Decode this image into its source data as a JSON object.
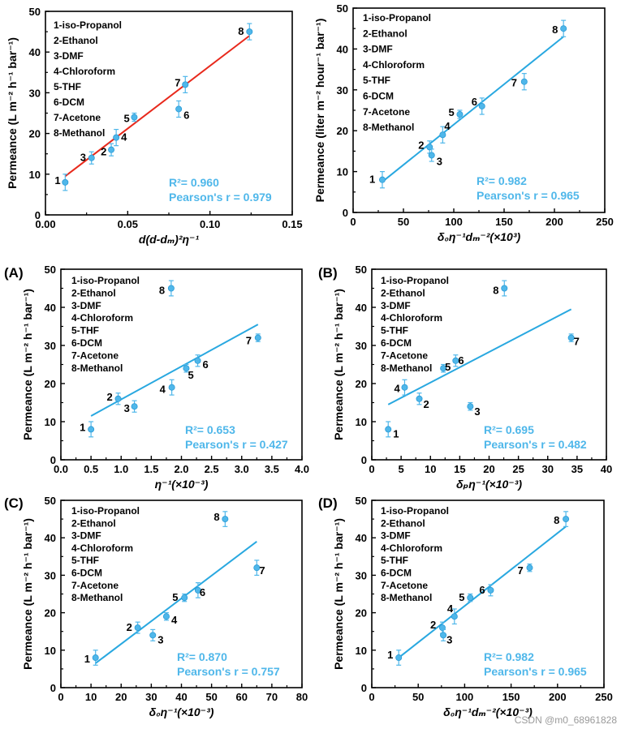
{
  "colors": {
    "fit_red": "#e8291c",
    "fit_blue": "#29a8e0",
    "point": "#4fb7ea",
    "stat_text": "#4fb7ea",
    "axis": "#000000"
  },
  "watermark": "CSDN @m0_68961828",
  "chart_data": [
    {
      "id": "top-left",
      "type": "scatter",
      "panel_label": "",
      "ylabel": "Permeance (L m⁻² h⁻¹ bar⁻¹)",
      "xlabel": "d(d-dₘ)²η⁻¹",
      "xlim": [
        0.0,
        0.15
      ],
      "ylim": [
        0,
        50
      ],
      "xticks": [
        "0.00",
        "0.05",
        "0.10",
        "0.15"
      ],
      "xtick_values": [
        0,
        0.05,
        0.1,
        0.15
      ],
      "yticks": [
        "0",
        "10",
        "20",
        "30",
        "40",
        "50"
      ],
      "ytick_values": [
        0,
        10,
        20,
        30,
        40,
        50
      ],
      "legend": [
        "1-iso-Propanol",
        "2-Ethanol",
        "3-DMF",
        "4-Chloroform",
        "5-THF",
        "6-DCM",
        "7-Acetone",
        "8-Methanol"
      ],
      "points": [
        {
          "label": "1",
          "x": 0.012,
          "y": 8,
          "err": 2
        },
        {
          "label": "2",
          "x": 0.04,
          "y": 16,
          "err": 1.5
        },
        {
          "label": "3",
          "x": 0.028,
          "y": 14,
          "err": 1.5
        },
        {
          "label": "4",
          "x": 0.043,
          "y": 19,
          "err": 2
        },
        {
          "label": "5",
          "x": 0.054,
          "y": 24,
          "err": 1
        },
        {
          "label": "6",
          "x": 0.081,
          "y": 26,
          "err": 2
        },
        {
          "label": "7",
          "x": 0.085,
          "y": 32,
          "err": 2
        },
        {
          "label": "8",
          "x": 0.124,
          "y": 45,
          "err": 2
        }
      ],
      "fit": {
        "x": [
          0.012,
          0.124
        ],
        "y": [
          9.5,
          44
        ]
      },
      "fit_color": "#e8291c",
      "r2": "R²= 0.960",
      "pearson": "Pearson's r = 0.979"
    },
    {
      "id": "top-right",
      "type": "scatter",
      "panel_label": "",
      "ylabel": "Permeance (liter m⁻² hour⁻¹ bar⁻¹)",
      "xlabel": "δ₀η⁻¹dₘ⁻²(×10³)",
      "xlim": [
        0,
        250
      ],
      "ylim": [
        0,
        50
      ],
      "xticks": [
        "0",
        "50",
        "100",
        "150",
        "200",
        "250"
      ],
      "xtick_values": [
        0,
        50,
        100,
        150,
        200,
        250
      ],
      "yticks": [
        "0",
        "10",
        "20",
        "30",
        "40",
        "50"
      ],
      "ytick_values": [
        0,
        10,
        20,
        30,
        40,
        50
      ],
      "legend": [
        "1-iso-Propanol",
        "2-Ethanol",
        "3-DMF",
        "4-Chloroform",
        "5-THF",
        "6-DCM",
        "7-Acetone",
        "8-Methanol"
      ],
      "points": [
        {
          "label": "1",
          "x": 29,
          "y": 8,
          "err": 2
        },
        {
          "label": "2",
          "x": 76,
          "y": 16,
          "err": 1.5
        },
        {
          "label": "3",
          "x": 78,
          "y": 14,
          "err": 1.5
        },
        {
          "label": "4",
          "x": 89,
          "y": 19,
          "err": 2
        },
        {
          "label": "5",
          "x": 106,
          "y": 24,
          "err": 1
        },
        {
          "label": "6",
          "x": 128,
          "y": 26,
          "err": 2
        },
        {
          "label": "7",
          "x": 170,
          "y": 32,
          "err": 2
        },
        {
          "label": "8",
          "x": 209,
          "y": 45,
          "err": 2
        }
      ],
      "fit": {
        "x": [
          29,
          209
        ],
        "y": [
          7.5,
          43
        ]
      },
      "fit_color": "#29a8e0",
      "r2": "R²= 0.982",
      "pearson": "Pearson's r = 0.965"
    },
    {
      "id": "panel-A",
      "type": "scatter",
      "panel_label": "(A)",
      "ylabel": "Permeance (L m⁻² h⁻¹ bar⁻¹)",
      "xlabel": "η⁻¹(×10⁻³)",
      "xlim": [
        0.0,
        4.0
      ],
      "ylim": [
        0,
        50
      ],
      "xticks": [
        "0.0",
        "0.5",
        "1.0",
        "1.5",
        "2.0",
        "2.5",
        "3.0",
        "3.5",
        "4.0"
      ],
      "xtick_values": [
        0,
        0.5,
        1,
        1.5,
        2,
        2.5,
        3,
        3.5,
        4
      ],
      "yticks": [
        "0",
        "10",
        "20",
        "30",
        "40",
        "50"
      ],
      "ytick_values": [
        0,
        10,
        20,
        30,
        40,
        50
      ],
      "legend": [
        "1-iso-Propanol",
        "2-Ethanol",
        "3-DMF",
        "4-Chloroform",
        "5-THF",
        "6-DCM",
        "7-Acetone",
        "8-Methanol"
      ],
      "points": [
        {
          "label": "1",
          "x": 0.5,
          "y": 8,
          "err": 2
        },
        {
          "label": "2",
          "x": 0.95,
          "y": 16,
          "err": 1.5
        },
        {
          "label": "3",
          "x": 1.22,
          "y": 14,
          "err": 1.5
        },
        {
          "label": "4",
          "x": 1.84,
          "y": 19,
          "err": 2
        },
        {
          "label": "5",
          "x": 2.08,
          "y": 24,
          "err": 1
        },
        {
          "label": "6",
          "x": 2.27,
          "y": 26,
          "err": 1.5
        },
        {
          "label": "7",
          "x": 3.27,
          "y": 32,
          "err": 1
        },
        {
          "label": "8",
          "x": 1.83,
          "y": 45,
          "err": 2
        }
      ],
      "fit": {
        "x": [
          0.5,
          3.27
        ],
        "y": [
          11.5,
          35.5
        ]
      },
      "fit_color": "#29a8e0",
      "r2": "R²= 0.653",
      "pearson": "Pearson's r = 0.427"
    },
    {
      "id": "panel-B",
      "type": "scatter",
      "panel_label": "(B)",
      "ylabel": "Permeance (L m⁻² h⁻¹ bar⁻¹)",
      "xlabel": "δₚη⁻¹(×10⁻³)",
      "xlim": [
        0,
        40
      ],
      "ylim": [
        0,
        50
      ],
      "xticks": [
        "0",
        "5",
        "10",
        "15",
        "20",
        "25",
        "30",
        "35",
        "40"
      ],
      "xtick_values": [
        0,
        5,
        10,
        15,
        20,
        25,
        30,
        35,
        40
      ],
      "yticks": [
        "0",
        "10",
        "20",
        "30",
        "40",
        "50"
      ],
      "ytick_values": [
        0,
        10,
        20,
        30,
        40,
        50
      ],
      "legend": [
        "1-iso-Propanol",
        "2-Ethanol",
        "3-DMF",
        "4-Chloroform",
        "5-THF",
        "6-DCM",
        "7-Acetone",
        "8-Methanol"
      ],
      "points": [
        {
          "label": "1",
          "x": 2.8,
          "y": 8,
          "err": 2
        },
        {
          "label": "2",
          "x": 8.1,
          "y": 16,
          "err": 1.5
        },
        {
          "label": "3",
          "x": 16.8,
          "y": 14,
          "err": 1
        },
        {
          "label": "4",
          "x": 5.6,
          "y": 19,
          "err": 2
        },
        {
          "label": "5",
          "x": 12.2,
          "y": 24,
          "err": 1
        },
        {
          "label": "6",
          "x": 14.3,
          "y": 26,
          "err": 1.5
        },
        {
          "label": "7",
          "x": 34.0,
          "y": 32,
          "err": 1
        },
        {
          "label": "8",
          "x": 22.6,
          "y": 45,
          "err": 2
        }
      ],
      "fit": {
        "x": [
          2.8,
          34.0
        ],
        "y": [
          14.5,
          39.5
        ]
      },
      "fit_color": "#29a8e0",
      "r2": "R²= 0.695",
      "pearson": "Pearson's r = 0.482"
    },
    {
      "id": "panel-C",
      "type": "scatter",
      "panel_label": "(C)",
      "ylabel": "Permeance (L m⁻² h⁻¹ bar⁻¹)",
      "xlabel": "δ₀η⁻¹(×10⁻³)",
      "xlim": [
        0,
        80
      ],
      "ylim": [
        0,
        50
      ],
      "xticks": [
        "0",
        "10",
        "20",
        "30",
        "40",
        "50",
        "60",
        "70",
        "80"
      ],
      "xtick_values": [
        0,
        10,
        20,
        30,
        40,
        50,
        60,
        70,
        80
      ],
      "yticks": [
        "0",
        "10",
        "20",
        "30",
        "40",
        "50"
      ],
      "ytick_values": [
        0,
        10,
        20,
        30,
        40,
        50
      ],
      "legend": [
        "1-iso-Propanol",
        "2-Ethanol",
        "3-DMF",
        "4-Chloroform",
        "5-THF",
        "6-DCM",
        "7-Acetone",
        "8-Methanol"
      ],
      "points": [
        {
          "label": "1",
          "x": 11.5,
          "y": 8,
          "err": 2
        },
        {
          "label": "2",
          "x": 25.5,
          "y": 16,
          "err": 1.5
        },
        {
          "label": "3",
          "x": 30.5,
          "y": 14,
          "err": 1.5
        },
        {
          "label": "4",
          "x": 35.0,
          "y": 19,
          "err": 1
        },
        {
          "label": "5",
          "x": 41.0,
          "y": 24,
          "err": 1
        },
        {
          "label": "6",
          "x": 45.5,
          "y": 26,
          "err": 2
        },
        {
          "label": "7",
          "x": 65.0,
          "y": 32,
          "err": 2
        },
        {
          "label": "8",
          "x": 54.5,
          "y": 45,
          "err": 2
        }
      ],
      "fit": {
        "x": [
          11.5,
          65.0
        ],
        "y": [
          6.5,
          39
        ]
      },
      "fit_color": "#29a8e0",
      "r2": "R²= 0.870",
      "pearson": "Pearson's r = 0.757"
    },
    {
      "id": "panel-D",
      "type": "scatter",
      "panel_label": "(D)",
      "ylabel": "Permeance (L m⁻² h⁻¹ bar⁻¹)",
      "xlabel": "δ₀η⁻¹dₘ⁻²(×10⁻³)",
      "xlim": [
        0,
        250
      ],
      "ylim": [
        0,
        50
      ],
      "xticks": [
        "0",
        "50",
        "100",
        "150",
        "200",
        "250"
      ],
      "xtick_values": [
        0,
        50,
        100,
        150,
        200,
        250
      ],
      "yticks": [
        "0",
        "10",
        "20",
        "30",
        "40",
        "50"
      ],
      "ytick_values": [
        0,
        10,
        20,
        30,
        40,
        50
      ],
      "legend": [
        "1-iso-Propanol",
        "2-Ethanol",
        "3-DMF",
        "4-Chloroform",
        "5-THF",
        "6-DCM",
        "7-Acetone",
        "8-Methanol"
      ],
      "points": [
        {
          "label": "1",
          "x": 29,
          "y": 8,
          "err": 2
        },
        {
          "label": "2",
          "x": 76,
          "y": 16,
          "err": 1.5
        },
        {
          "label": "3",
          "x": 77,
          "y": 14,
          "err": 1.5
        },
        {
          "label": "4",
          "x": 89,
          "y": 19,
          "err": 2
        },
        {
          "label": "5",
          "x": 106,
          "y": 24,
          "err": 1
        },
        {
          "label": "6",
          "x": 128,
          "y": 26,
          "err": 1.5
        },
        {
          "label": "7",
          "x": 170,
          "y": 32,
          "err": 1
        },
        {
          "label": "8",
          "x": 209,
          "y": 45,
          "err": 2
        }
      ],
      "fit": {
        "x": [
          29,
          209
        ],
        "y": [
          8,
          43
        ]
      },
      "fit_color": "#29a8e0",
      "r2": "R²= 0.982",
      "pearson": "Pearson's r = 0.965"
    }
  ]
}
